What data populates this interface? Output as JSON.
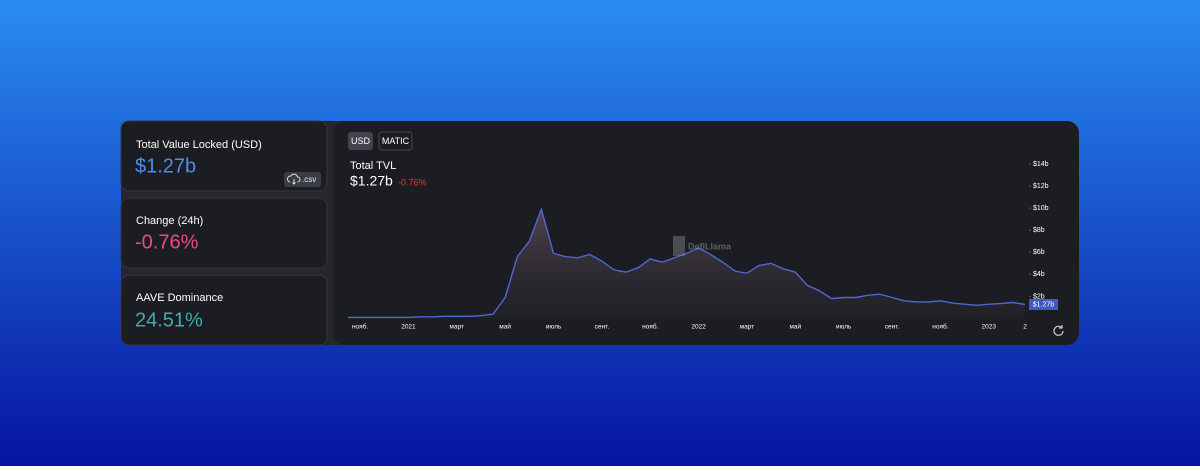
{
  "stats": [
    {
      "label": "Total Value Locked (USD)",
      "value": "$1.27b"
    },
    {
      "label": "Change (24h)",
      "value": "-0.76%"
    },
    {
      "label": "AAVE Dominance",
      "value": "24.51%"
    }
  ],
  "csv_button": ".csv",
  "toggles": [
    "USD",
    "MATIC"
  ],
  "watermark": "DefiLlama",
  "chart_data": {
    "type": "area",
    "title": "Total TVL",
    "subtitle": "$1.27b",
    "change": "-0.76%",
    "current_label": "$1.27b",
    "color": "#4d68d4",
    "categories": [
      null,
      "нояб.",
      null,
      null,
      null,
      "2021",
      null,
      null,
      null,
      "март",
      null,
      null,
      null,
      "май",
      null,
      null,
      null,
      "июль",
      null,
      null,
      null,
      "сент.",
      null,
      null,
      null,
      "нояб.",
      null,
      null,
      null,
      "2022",
      null,
      null,
      null,
      "март",
      null,
      null,
      null,
      "май",
      null,
      null,
      null,
      "июль",
      null,
      null,
      null,
      "сент.",
      null,
      null,
      null,
      "нояб.",
      null,
      null,
      null,
      "2023",
      null,
      null,
      "2"
    ],
    "values": [
      0.1,
      0.1,
      0.1,
      0.1,
      0.1,
      0.1,
      0.15,
      0.15,
      0.2,
      0.2,
      0.2,
      0.25,
      0.4,
      1.9,
      5.6,
      7.0,
      9.9,
      5.9,
      5.6,
      5.5,
      5.8,
      5.2,
      4.4,
      4.2,
      4.6,
      5.4,
      5.1,
      5.5,
      5.9,
      6.4,
      5.8,
      5.1,
      4.3,
      4.1,
      4.8,
      5.0,
      4.5,
      4.2,
      3.0,
      2.5,
      1.8,
      1.9,
      1.9,
      2.1,
      2.2,
      1.9,
      1.6,
      1.5,
      1.5,
      1.6,
      1.4,
      1.3,
      1.2,
      1.3,
      1.35,
      1.45,
      1.27
    ],
    "ylim": [
      0,
      14
    ],
    "yticks": [
      {
        "value": 2,
        "label": "$2b"
      },
      {
        "value": 4,
        "label": "$4b"
      },
      {
        "value": 6,
        "label": "$6b"
      },
      {
        "value": 8,
        "label": "$8b"
      },
      {
        "value": 10,
        "label": "$10b"
      },
      {
        "value": 12,
        "label": "$12b"
      },
      {
        "value": 14,
        "label": "$14b"
      }
    ],
    "grid": false
  }
}
